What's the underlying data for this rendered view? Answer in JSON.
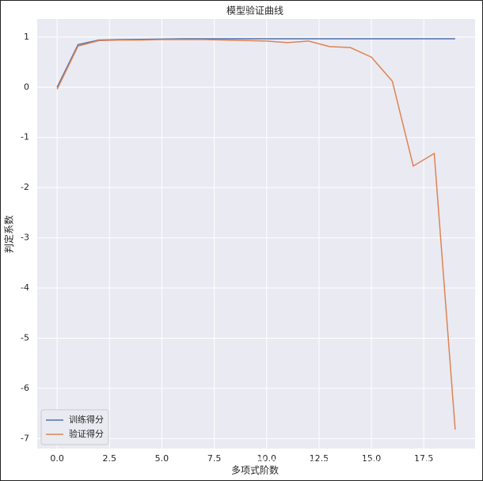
{
  "chart_data": {
    "type": "line",
    "title": "模型验证曲线",
    "x_label": "多项式阶数",
    "y_label": "判定系数",
    "x": [
      0,
      1,
      2,
      3,
      4,
      5,
      6,
      7,
      8,
      9,
      10,
      11,
      12,
      13,
      14,
      15,
      16,
      17,
      18,
      19
    ],
    "series": [
      {
        "name": "训练得分",
        "color": "#4c72b0",
        "values": [
          0.0,
          0.85,
          0.94,
          0.95,
          0.955,
          0.96,
          0.965,
          0.965,
          0.965,
          0.965,
          0.965,
          0.965,
          0.965,
          0.965,
          0.965,
          0.965,
          0.965,
          0.965,
          0.965,
          0.965
        ]
      },
      {
        "name": "验证得分",
        "color": "#dd8452",
        "values": [
          -0.04,
          0.82,
          0.93,
          0.94,
          0.94,
          0.95,
          0.95,
          0.95,
          0.94,
          0.93,
          0.92,
          0.89,
          0.92,
          0.81,
          0.79,
          0.6,
          0.12,
          -1.57,
          -1.32,
          -6.82
        ]
      }
    ],
    "xlim": [
      -0.95,
      19.95
    ],
    "ylim": [
      -7.2,
      1.36
    ],
    "xticks": [
      {
        "value": 0,
        "label": "0.0"
      },
      2.5,
      {
        "value": 5,
        "label": "5.0"
      },
      7.5,
      {
        "value": 10,
        "label": "10.0"
      },
      12.5,
      {
        "value": 15,
        "label": "15.0"
      },
      17.5
    ],
    "yticks": [
      -7,
      -6,
      -5,
      -4,
      -3,
      -2,
      -1,
      0,
      1
    ],
    "grid": true,
    "legend": "lower left",
    "watermark": "https://blog.csdn.net/weixin_41429999"
  }
}
